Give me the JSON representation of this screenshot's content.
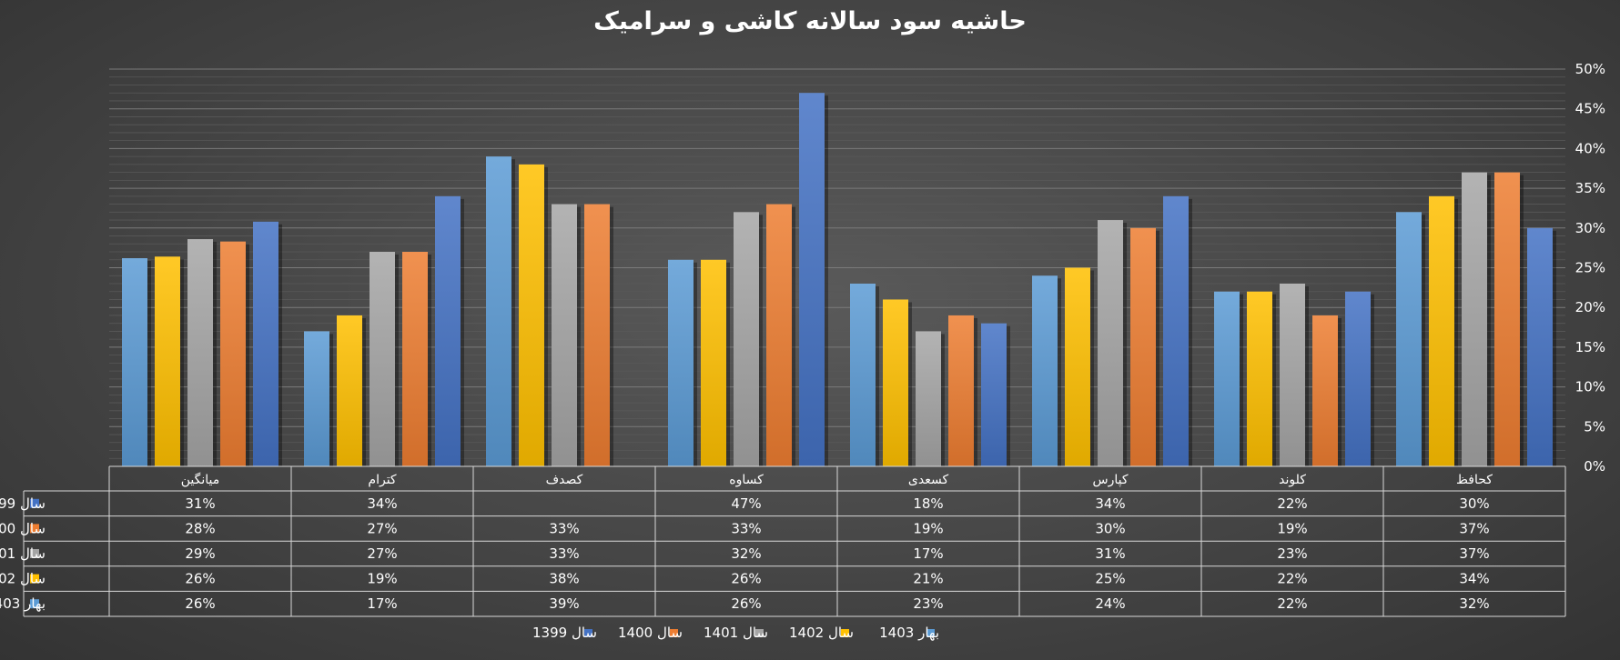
{
  "chart_data": {
    "type": "bar",
    "title": "حاشیه سود سالانه کاشی و سرامیک",
    "categories": [
      "کحافظ",
      "کلوند",
      "کپارس",
      "کسعدی",
      "کساوه",
      "کصدف",
      "کترام",
      "میانگین"
    ],
    "ylim": [
      0,
      50
    ],
    "y_ticks": [
      "0%",
      "5%",
      "10%",
      "15%",
      "20%",
      "25%",
      "30%",
      "35%",
      "40%",
      "45%",
      "50%"
    ],
    "grid": true,
    "legend_position": "bottom",
    "series": [
      {
        "name": "بهار 1403",
        "color": "#5b9bd5",
        "values": [
          32,
          22,
          24,
          23,
          26,
          39,
          17,
          26.2
        ],
        "labels": [
          "32%",
          "22%",
          "24%",
          "23%",
          "26%",
          "39%",
          "17%",
          "26%"
        ]
      },
      {
        "name": "سال 1402",
        "color": "#ffc000",
        "values": [
          34,
          22,
          25,
          21,
          26,
          38,
          19,
          26.4
        ],
        "labels": [
          "34%",
          "22%",
          "25%",
          "21%",
          "26%",
          "38%",
          "19%",
          "26%"
        ]
      },
      {
        "name": "سال 1401",
        "color": "#a5a5a5",
        "values": [
          37,
          23,
          31,
          17,
          32,
          33,
          27,
          28.6
        ],
        "labels": [
          "37%",
          "23%",
          "31%",
          "17%",
          "32%",
          "33%",
          "27%",
          "29%"
        ]
      },
      {
        "name": "سال 1400",
        "color": "#ed7d31",
        "values": [
          37,
          19,
          30,
          19,
          33,
          33,
          27,
          28.3
        ],
        "labels": [
          "37%",
          "19%",
          "30%",
          "19%",
          "33%",
          "33%",
          "27%",
          "28%"
        ]
      },
      {
        "name": "سال 1399",
        "color": "#4472c4",
        "values": [
          30,
          22,
          34,
          18,
          47,
          null,
          34,
          30.8
        ],
        "labels": [
          "30%",
          "22%",
          "34%",
          "18%",
          "47%",
          "",
          "34%",
          "31%"
        ]
      }
    ],
    "table_row_order": [
      "سال 1399",
      "سال 1400",
      "سال 1401",
      "سال 1402",
      "بهار 1403"
    ],
    "legend_order": [
      "سال 1399",
      "سال 1400",
      "سال 1401",
      "سال 1402",
      "بهار 1403"
    ]
  }
}
